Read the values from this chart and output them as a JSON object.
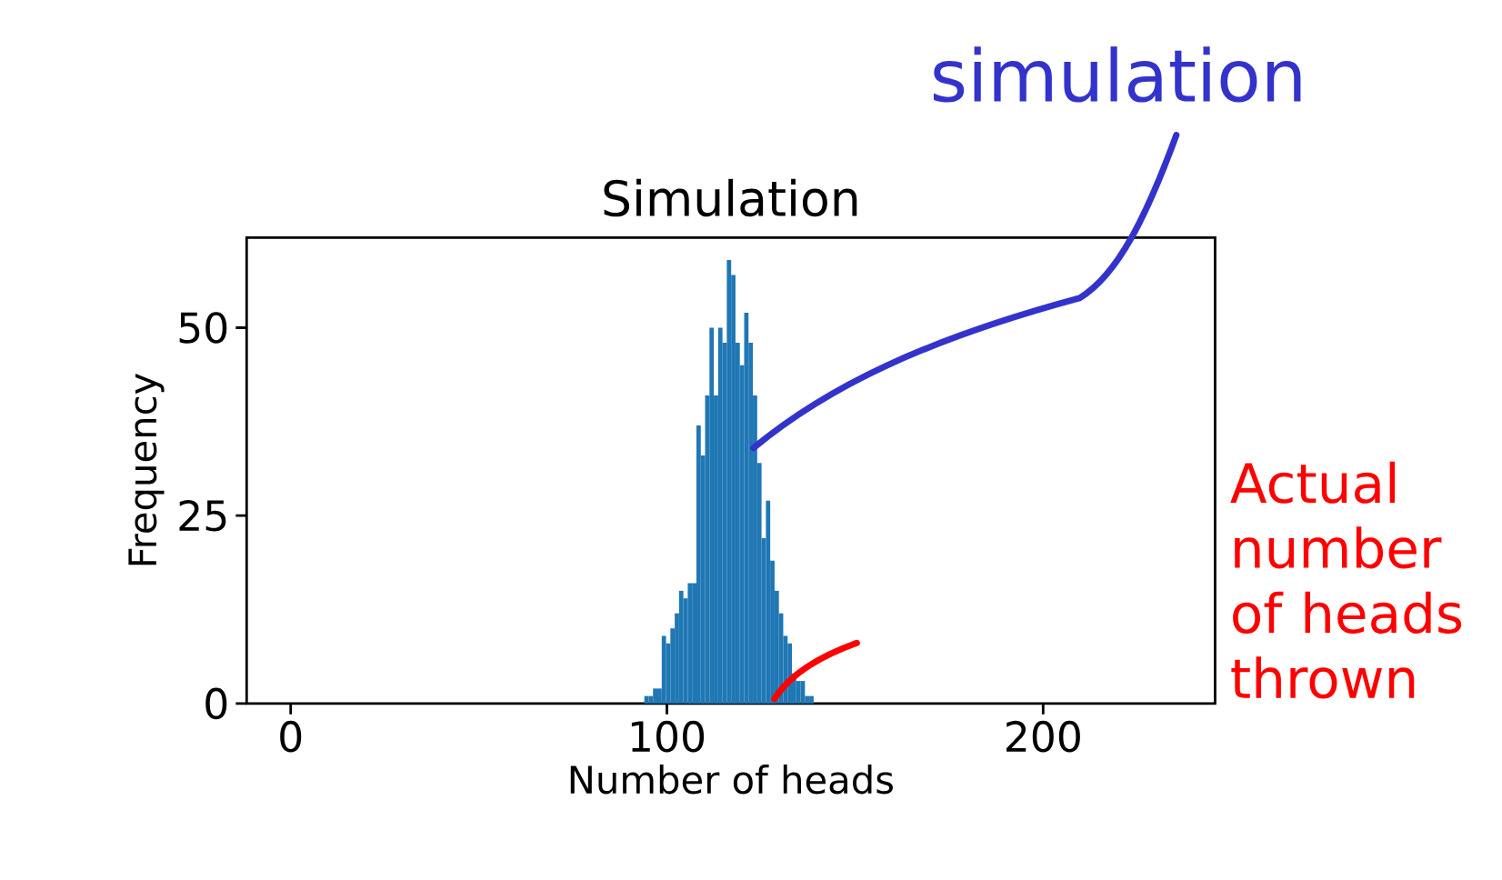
{
  "chart_data": {
    "type": "histogram",
    "title": "Simulation",
    "xlabel": "Number of heads",
    "ylabel": "Frequency",
    "bins": [
      94,
      95.15,
      96.31,
      97.46,
      98.62,
      99.77,
      100.92,
      102.08,
      103.23,
      104.38,
      105.54,
      106.69,
      107.85,
      109,
      110.15,
      111.31,
      112.46,
      113.62,
      114.77,
      115.92,
      117.08,
      118.23,
      119.38,
      120.54,
      121.69,
      122.85,
      124,
      125.15,
      126.31,
      127.46,
      128.62,
      129.77,
      130.92,
      132.08,
      133.23,
      134.38,
      135.54,
      136.69,
      137.85,
      139
    ],
    "values": [
      1,
      1,
      2,
      2,
      9,
      8,
      10,
      12,
      15,
      14,
      16,
      16,
      37,
      33,
      41,
      50,
      41,
      50,
      48,
      59,
      57,
      48,
      45,
      52,
      48,
      41,
      32,
      22,
      27,
      19,
      15,
      12,
      9,
      8,
      4,
      3,
      3,
      1,
      1
    ],
    "color": "#1f77b4",
    "xlim": [
      -11.7,
      245.7
    ],
    "ylim": [
      0,
      62
    ],
    "xticks": [
      0,
      100,
      200
    ],
    "yticks": [
      0,
      25,
      50
    ],
    "annotations": [
      {
        "text": "simulation",
        "x": 123,
        "y": 34
      },
      "Actual number of heads thrown"
    ]
  }
}
